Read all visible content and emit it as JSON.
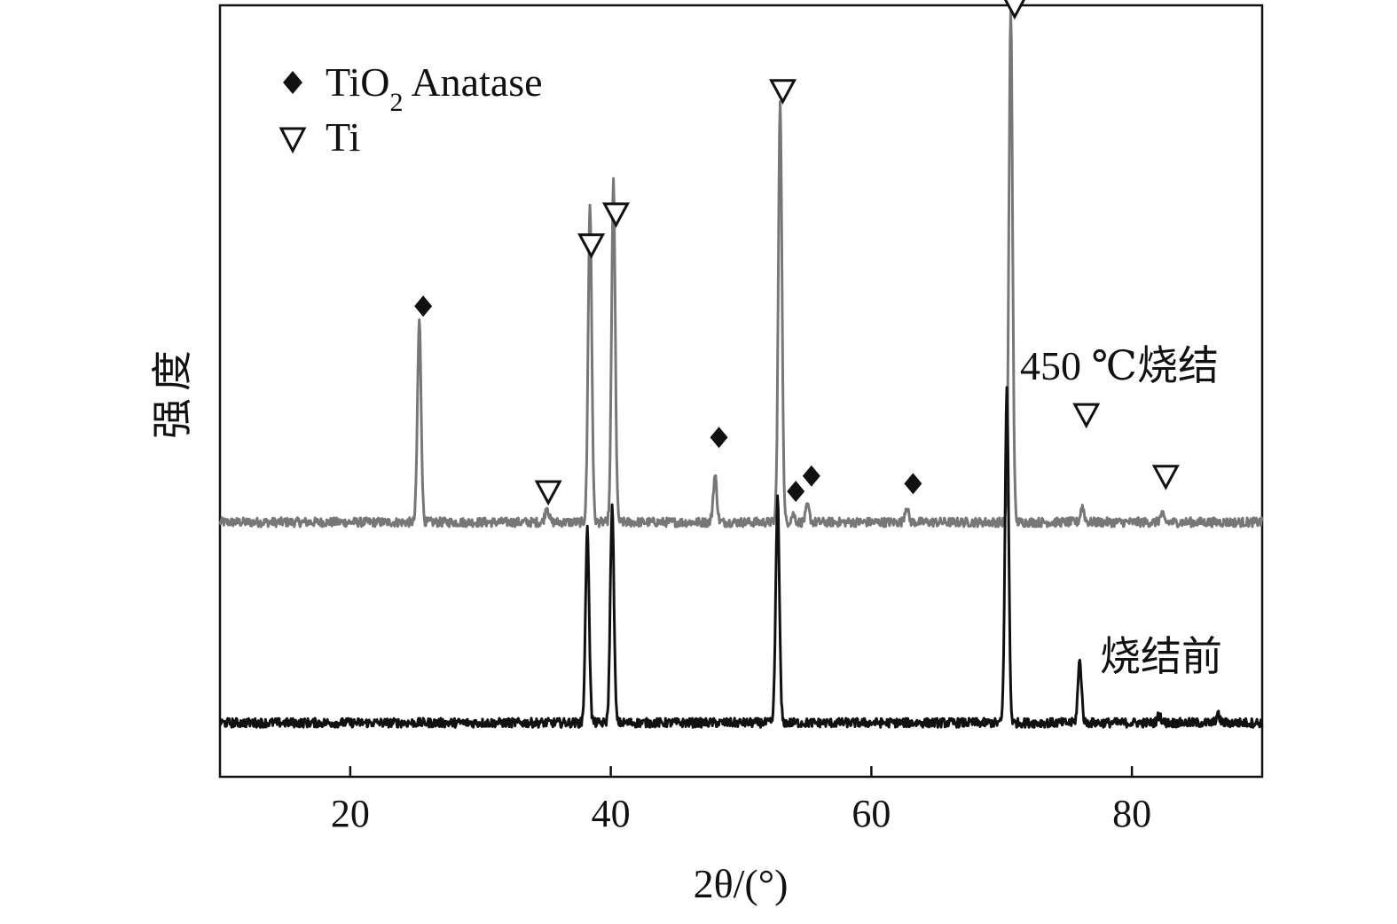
{
  "chart_data": {
    "type": "line",
    "title": "",
    "xlabel": "2θ/(°)",
    "ylabel": "强度",
    "xlim": [
      10,
      90
    ],
    "xticks": [
      20,
      40,
      60,
      80
    ],
    "y_ticks_shown": false,
    "grid": false,
    "legend": {
      "placement": "top-left",
      "entries": [
        {
          "marker": "filled-diamond",
          "label": "TiO",
          "subscript": "2",
          "suffix": " Anatase"
        },
        {
          "marker": "open-triangle-down",
          "label": "Ti"
        }
      ]
    },
    "series": [
      {
        "label": "450 ℃烧结",
        "color": "#777777",
        "baseline": 0.33,
        "peaks": [
          {
            "x": 25.3,
            "h": 0.26
          },
          {
            "x": 35.1,
            "h": 0.02
          },
          {
            "x": 38.4,
            "h": 0.41
          },
          {
            "x": 40.2,
            "h": 0.44
          },
          {
            "x": 48.0,
            "h": 0.06
          },
          {
            "x": 53.0,
            "h": 0.54
          },
          {
            "x": 54.0,
            "h": 0.01
          },
          {
            "x": 55.1,
            "h": 0.02
          },
          {
            "x": 62.7,
            "h": 0.02
          },
          {
            "x": 70.7,
            "h": 0.66
          },
          {
            "x": 76.2,
            "h": 0.02
          },
          {
            "x": 82.3,
            "h": 0.01
          }
        ]
      },
      {
        "label": "烧结前",
        "color": "#111111",
        "baseline": 0.07,
        "peaks": [
          {
            "x": 38.2,
            "h": 0.25
          },
          {
            "x": 40.1,
            "h": 0.28
          },
          {
            "x": 52.8,
            "h": 0.29
          },
          {
            "x": 70.4,
            "h": 0.43
          },
          {
            "x": 76.0,
            "h": 0.08
          },
          {
            "x": 82.1,
            "h": 0.01
          },
          {
            "x": 86.6,
            "h": 0.01
          }
        ]
      }
    ],
    "markers": [
      {
        "type": "anatase",
        "x": 25.6,
        "y": 0.61
      },
      {
        "type": "ti",
        "x": 35.2,
        "y": 0.37
      },
      {
        "type": "ti",
        "x": 38.5,
        "y": 0.69
      },
      {
        "type": "ti",
        "x": 40.4,
        "y": 0.73
      },
      {
        "type": "anatase",
        "x": 48.3,
        "y": 0.44
      },
      {
        "type": "ti",
        "x": 53.2,
        "y": 0.89
      },
      {
        "type": "anatase",
        "x": 54.2,
        "y": 0.37
      },
      {
        "type": "anatase",
        "x": 55.4,
        "y": 0.39
      },
      {
        "type": "anatase",
        "x": 63.2,
        "y": 0.38
      },
      {
        "type": "ti",
        "x": 71.0,
        "y": 1.0
      },
      {
        "type": "ti",
        "x": 76.5,
        "y": 0.47
      },
      {
        "type": "ti",
        "x": 82.6,
        "y": 0.39
      }
    ]
  }
}
